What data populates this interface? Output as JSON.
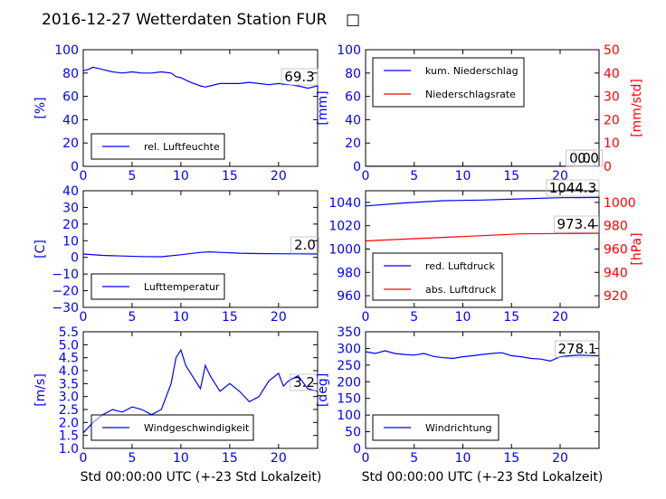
{
  "title": "2016-12-27 Wetterdaten Station FUR",
  "title_glyph": "□",
  "colors": {
    "primary": "#0000ff",
    "secondary": "#ff0000",
    "axis": "#000000",
    "legend_border": "#000000"
  },
  "xlabel": "Std 00:00:00 UTC (+-23 Std Lokalzeit)",
  "chart_data": [
    {
      "id": "humidity",
      "type": "line",
      "ylabel": "[%]",
      "xlim": [
        0,
        24
      ],
      "ylim": [
        0,
        100
      ],
      "xticks": [
        "0",
        "5",
        "10",
        "15",
        "20"
      ],
      "yticks": [
        "0",
        "20",
        "40",
        "60",
        "80",
        "100"
      ],
      "series": [
        {
          "name": "rel. Luftfeuchte",
          "color": "#0000ff",
          "x": [
            0,
            0.5,
            1,
            1.5,
            2,
            3,
            4,
            5,
            6,
            7,
            8,
            9,
            9.5,
            10,
            11,
            12,
            12.5,
            13,
            14,
            15,
            16,
            17,
            18,
            19,
            20,
            21,
            22,
            23,
            24
          ],
          "y": [
            82,
            83,
            85,
            84,
            83,
            81,
            80,
            81,
            80,
            80,
            81,
            80,
            77,
            76,
            72,
            69,
            68,
            69,
            71,
            71,
            71,
            72,
            71,
            70,
            71,
            70,
            69,
            67,
            69
          ]
        }
      ],
      "annotation": "69.3",
      "legend": "lower-left",
      "grid": false
    },
    {
      "id": "precip",
      "type": "line",
      "ylabel": "[mm]",
      "y2label": "[mm/std]",
      "xlim": [
        0,
        24
      ],
      "ylim": [
        0,
        100
      ],
      "y2lim": [
        0,
        50
      ],
      "xticks": [
        "0",
        "5",
        "10",
        "15",
        "20"
      ],
      "yticks": [
        "0",
        "20",
        "40",
        "60",
        "80",
        "100"
      ],
      "y2ticks": [
        "0",
        "10",
        "20",
        "30",
        "40",
        "50"
      ],
      "series": [
        {
          "name": "kum. Niederschlag",
          "color": "#0000ff",
          "axis": "left",
          "x": [
            0,
            24
          ],
          "y": [
            0,
            0
          ]
        },
        {
          "name": "Niederschlagsrate",
          "color": "#ff0000",
          "axis": "right",
          "x": [
            0,
            24
          ],
          "y": [
            0,
            0
          ]
        }
      ],
      "annotations": [
        "0.0",
        "0.0"
      ],
      "legend": "upper-left",
      "grid": false
    },
    {
      "id": "temperature",
      "type": "line",
      "ylabel": "[C]",
      "xlim": [
        0,
        24
      ],
      "ylim": [
        -30,
        40
      ],
      "xticks": [
        "0",
        "5",
        "10",
        "15",
        "20"
      ],
      "yticks": [
        "−30",
        "−20",
        "−10",
        "0",
        "10",
        "20",
        "30",
        "40"
      ],
      "series": [
        {
          "name": "Lufttemperatur",
          "color": "#0000ff",
          "x": [
            0,
            2,
            4,
            6,
            8,
            10,
            12,
            13,
            14,
            16,
            18,
            20,
            22,
            24
          ],
          "y": [
            2.0,
            1.2,
            0.8,
            0.5,
            0.4,
            1.6,
            3.0,
            3.3,
            3.0,
            2.5,
            2.3,
            2.2,
            2.1,
            2.0
          ]
        }
      ],
      "annotation": "2.0",
      "legend": "lower-left",
      "grid": false
    },
    {
      "id": "pressure",
      "type": "line",
      "ylabel": "",
      "y2label": "[hPa]",
      "xlim": [
        0,
        24
      ],
      "ylim": [
        950,
        1050
      ],
      "y2lim": [
        910,
        1010
      ],
      "xticks": [
        "0",
        "5",
        "10",
        "15",
        "20"
      ],
      "yticks": [
        "960",
        "980",
        "1000",
        "1020",
        "1040"
      ],
      "y2ticks": [
        "920",
        "940",
        "960",
        "980",
        "1000"
      ],
      "series": [
        {
          "name": "red. Luftdruck",
          "color": "#0000ff",
          "axis": "left",
          "x": [
            0,
            4,
            8,
            12,
            16,
            20,
            24
          ],
          "y": [
            1037,
            1039.5,
            1041.5,
            1042,
            1043,
            1044,
            1044.3
          ]
        },
        {
          "name": "abs. Luftdruck",
          "color": "#ff0000",
          "axis": "right",
          "x": [
            0,
            4,
            8,
            12,
            16,
            20,
            24
          ],
          "y": [
            967,
            968.5,
            970,
            971.5,
            973,
            973.3,
            973.4
          ]
        }
      ],
      "annotations": [
        "1044.3",
        "973.4"
      ],
      "legend": "lower-left",
      "grid": false
    },
    {
      "id": "wind-speed",
      "type": "line",
      "ylabel": "[m/s]",
      "xlim": [
        0,
        24
      ],
      "ylim": [
        1.0,
        5.5
      ],
      "xticks": [
        "0",
        "5",
        "10",
        "15",
        "20"
      ],
      "yticks": [
        "1.0",
        "1.5",
        "2.0",
        "2.5",
        "3.0",
        "3.5",
        "4.0",
        "4.5",
        "5.0",
        "5.5"
      ],
      "series": [
        {
          "name": "Windgeschwindigkeit",
          "color": "#0000ff",
          "x": [
            0,
            1,
            2,
            3,
            4,
            5,
            6,
            7,
            8,
            9,
            9.5,
            10,
            10.5,
            11,
            12,
            12.5,
            13,
            14,
            15,
            16,
            17,
            18,
            19,
            20,
            20.5,
            21,
            22,
            23,
            24
          ],
          "y": [
            1.6,
            2.0,
            2.3,
            2.5,
            2.4,
            2.6,
            2.5,
            2.3,
            2.5,
            3.5,
            4.5,
            4.8,
            4.2,
            3.9,
            3.3,
            4.2,
            3.8,
            3.2,
            3.5,
            3.2,
            2.8,
            3.0,
            3.6,
            3.9,
            3.4,
            3.6,
            3.8,
            3.3,
            3.2
          ]
        }
      ],
      "annotation": "3.2",
      "legend": "lower-center",
      "grid": false
    },
    {
      "id": "wind-direction",
      "type": "line",
      "ylabel": "[deg]",
      "xlim": [
        0,
        24
      ],
      "ylim": [
        0,
        350
      ],
      "xticks": [
        "0",
        "5",
        "10",
        "15",
        "20"
      ],
      "yticks": [
        "0",
        "50",
        "100",
        "150",
        "200",
        "250",
        "300",
        "350"
      ],
      "series": [
        {
          "name": "Windrichtung",
          "color": "#0000ff",
          "x": [
            0,
            1,
            2,
            3,
            4,
            5,
            6,
            7,
            8,
            9,
            10,
            11,
            12,
            13,
            14,
            15,
            16,
            17,
            18,
            19,
            20,
            21,
            22,
            23,
            24
          ],
          "y": [
            290,
            285,
            293,
            285,
            282,
            280,
            285,
            276,
            272,
            270,
            275,
            278,
            282,
            285,
            287,
            278,
            275,
            270,
            268,
            262,
            275,
            278,
            280,
            279,
            278
          ]
        }
      ],
      "annotation": "278.1",
      "legend": "lower-left",
      "grid": false
    }
  ]
}
